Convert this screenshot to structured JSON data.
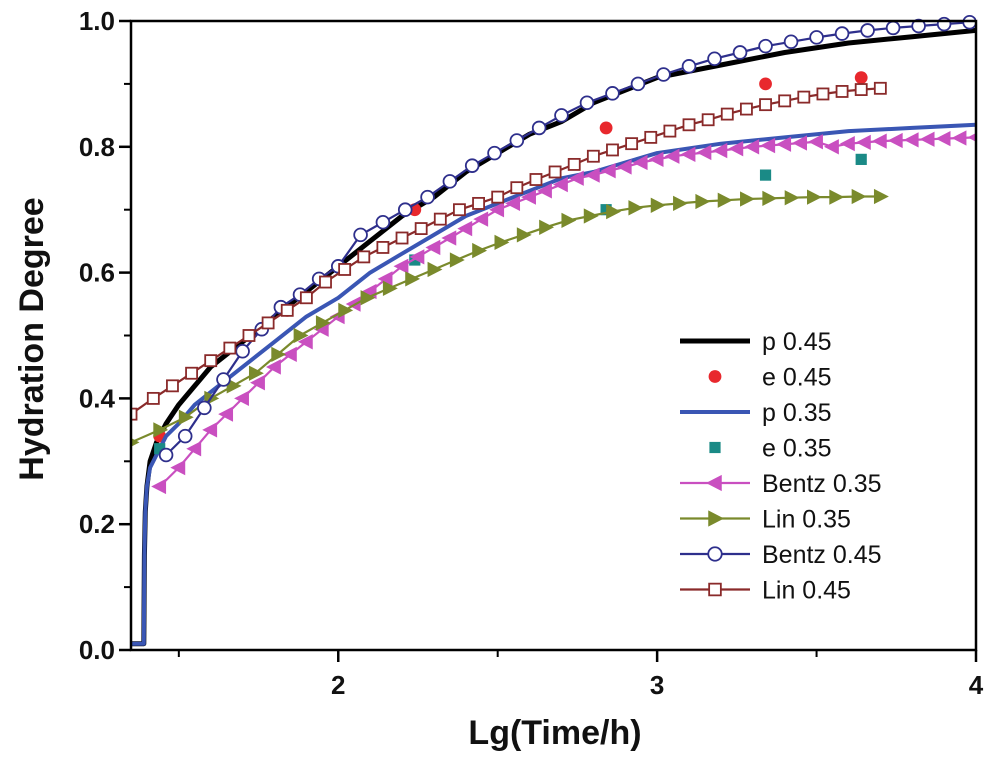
{
  "chart_data": {
    "type": "line",
    "xlabel": "Lg(Time/h)",
    "ylabel": "Hydration Degree",
    "xlim": [
      1.35,
      4.0
    ],
    "ylim": [
      0.0,
      1.0
    ],
    "x_ticks": [
      2,
      3,
      4
    ],
    "x_tick_labels": [
      "2",
      "3",
      "4"
    ],
    "x_minor_ticks": [
      1.5,
      2.5,
      3.5
    ],
    "y_ticks": [
      0.0,
      0.2,
      0.4,
      0.6,
      0.8,
      1.0
    ],
    "y_tick_labels": [
      "0.0",
      "0.2",
      "0.4",
      "0.6",
      "0.8",
      "1.0"
    ],
    "legend_position": "bottom-right",
    "series": [
      {
        "name": "p 0.45",
        "style": "line",
        "color": "#000000",
        "line_width": 5,
        "x": [
          1.35,
          1.39,
          1.392,
          1.395,
          1.4,
          1.41,
          1.43,
          1.46,
          1.5,
          1.55,
          1.6,
          1.7,
          1.8,
          1.9,
          2.0,
          2.1,
          2.2,
          2.3,
          2.4,
          2.5,
          2.6,
          2.7,
          2.8,
          2.9,
          3.0,
          3.2,
          3.4,
          3.6,
          3.8,
          4.0
        ],
        "y": [
          0.01,
          0.01,
          0.15,
          0.22,
          0.26,
          0.3,
          0.33,
          0.36,
          0.39,
          0.42,
          0.45,
          0.49,
          0.53,
          0.57,
          0.61,
          0.65,
          0.69,
          0.72,
          0.76,
          0.79,
          0.82,
          0.84,
          0.87,
          0.89,
          0.91,
          0.93,
          0.95,
          0.965,
          0.975,
          0.985
        ]
      },
      {
        "name": "e 0.45",
        "style": "marker",
        "marker": "filled-circle",
        "color": "#e8282d",
        "x": [
          1.44,
          1.84,
          2.24,
          2.84,
          3.34,
          3.64
        ],
        "y": [
          0.34,
          0.54,
          0.7,
          0.83,
          0.9,
          0.91
        ]
      },
      {
        "name": "p 0.35",
        "style": "line",
        "color": "#3a56b4",
        "line_width": 4,
        "x": [
          1.35,
          1.39,
          1.392,
          1.395,
          1.4,
          1.41,
          1.43,
          1.46,
          1.5,
          1.55,
          1.6,
          1.7,
          1.8,
          1.9,
          2.0,
          2.1,
          2.2,
          2.3,
          2.4,
          2.5,
          2.6,
          2.7,
          2.8,
          2.9,
          3.0,
          3.2,
          3.4,
          3.6,
          3.8,
          4.0
        ],
        "y": [
          0.01,
          0.01,
          0.15,
          0.22,
          0.26,
          0.29,
          0.31,
          0.34,
          0.36,
          0.39,
          0.41,
          0.45,
          0.49,
          0.53,
          0.56,
          0.6,
          0.63,
          0.66,
          0.69,
          0.71,
          0.73,
          0.75,
          0.76,
          0.775,
          0.79,
          0.805,
          0.815,
          0.825,
          0.83,
          0.835
        ]
      },
      {
        "name": "e 0.35",
        "style": "marker",
        "marker": "filled-square",
        "color": "#1a8a86",
        "x": [
          1.44,
          2.24,
          2.84,
          3.34,
          3.64
        ],
        "y": [
          0.32,
          0.62,
          0.7,
          0.755,
          0.78
        ]
      },
      {
        "name": "Bentz 0.35",
        "style": "line-marker",
        "marker": "triangle-left",
        "color": "#c94fc0",
        "x": [
          1.44,
          1.5,
          1.55,
          1.6,
          1.65,
          1.7,
          1.75,
          1.8,
          1.85,
          1.9,
          1.95,
          2.0,
          2.05,
          2.1,
          2.15,
          2.2,
          2.25,
          2.3,
          2.35,
          2.4,
          2.45,
          2.5,
          2.55,
          2.6,
          2.65,
          2.7,
          2.75,
          2.8,
          2.85,
          2.9,
          2.95,
          3.0,
          3.05,
          3.1,
          3.15,
          3.2,
          3.25,
          3.3,
          3.35,
          3.4,
          3.45,
          3.5,
          3.55,
          3.6,
          3.65,
          3.7,
          3.75,
          3.8,
          3.85,
          3.9,
          3.95,
          4.0
        ],
        "y": [
          0.26,
          0.29,
          0.32,
          0.35,
          0.375,
          0.4,
          0.425,
          0.45,
          0.47,
          0.49,
          0.51,
          0.53,
          0.55,
          0.57,
          0.59,
          0.61,
          0.625,
          0.64,
          0.655,
          0.67,
          0.685,
          0.7,
          0.71,
          0.72,
          0.73,
          0.74,
          0.75,
          0.755,
          0.762,
          0.768,
          0.775,
          0.78,
          0.785,
          0.788,
          0.791,
          0.794,
          0.797,
          0.8,
          0.802,
          0.804,
          0.806,
          0.808,
          0.8,
          0.805,
          0.807,
          0.809,
          0.81,
          0.811,
          0.812,
          0.813,
          0.814,
          0.815
        ]
      },
      {
        "name": "Lin 0.35",
        "style": "line-marker",
        "marker": "triangle-right",
        "color": "#7a8a2c",
        "x": [
          1.35,
          1.44,
          1.52,
          1.6,
          1.67,
          1.74,
          1.81,
          1.88,
          1.95,
          2.02,
          2.09,
          2.16,
          2.23,
          2.3,
          2.37,
          2.44,
          2.51,
          2.58,
          2.65,
          2.72,
          2.79,
          2.86,
          2.93,
          3.0,
          3.07,
          3.14,
          3.21,
          3.28,
          3.35,
          3.42,
          3.49,
          3.56,
          3.63,
          3.7
        ],
        "y": [
          0.33,
          0.35,
          0.37,
          0.4,
          0.42,
          0.44,
          0.47,
          0.5,
          0.52,
          0.54,
          0.56,
          0.575,
          0.59,
          0.605,
          0.62,
          0.635,
          0.648,
          0.66,
          0.672,
          0.683,
          0.69,
          0.697,
          0.703,
          0.707,
          0.71,
          0.713,
          0.715,
          0.717,
          0.718,
          0.719,
          0.72,
          0.72,
          0.721,
          0.721
        ]
      },
      {
        "name": "Bentz 0.45",
        "style": "line-marker",
        "marker": "open-circle",
        "color": "#2e2f8c",
        "x": [
          1.46,
          1.52,
          1.58,
          1.64,
          1.7,
          1.76,
          1.82,
          1.88,
          1.94,
          2.0,
          2.07,
          2.14,
          2.21,
          2.28,
          2.35,
          2.42,
          2.49,
          2.56,
          2.63,
          2.7,
          2.78,
          2.86,
          2.94,
          3.02,
          3.1,
          3.18,
          3.26,
          3.34,
          3.42,
          3.5,
          3.58,
          3.66,
          3.74,
          3.82,
          3.9,
          3.98
        ],
        "y": [
          0.31,
          0.34,
          0.385,
          0.43,
          0.475,
          0.51,
          0.545,
          0.565,
          0.59,
          0.61,
          0.66,
          0.68,
          0.7,
          0.72,
          0.745,
          0.77,
          0.79,
          0.81,
          0.83,
          0.85,
          0.87,
          0.885,
          0.9,
          0.915,
          0.928,
          0.94,
          0.95,
          0.96,
          0.967,
          0.974,
          0.98,
          0.985,
          0.989,
          0.992,
          0.995,
          0.998
        ]
      },
      {
        "name": "Lin 0.45",
        "style": "line-marker",
        "marker": "open-square",
        "color": "#8a2a2a",
        "x": [
          1.35,
          1.42,
          1.48,
          1.54,
          1.6,
          1.66,
          1.72,
          1.78,
          1.84,
          1.9,
          1.96,
          2.02,
          2.08,
          2.14,
          2.2,
          2.26,
          2.32,
          2.38,
          2.44,
          2.5,
          2.56,
          2.62,
          2.68,
          2.74,
          2.8,
          2.86,
          2.92,
          2.98,
          3.04,
          3.1,
          3.16,
          3.22,
          3.28,
          3.34,
          3.4,
          3.46,
          3.52,
          3.58,
          3.64,
          3.7
        ],
        "y": [
          0.375,
          0.4,
          0.42,
          0.44,
          0.46,
          0.48,
          0.5,
          0.52,
          0.54,
          0.56,
          0.585,
          0.605,
          0.625,
          0.64,
          0.655,
          0.67,
          0.685,
          0.7,
          0.71,
          0.72,
          0.735,
          0.748,
          0.76,
          0.772,
          0.785,
          0.795,
          0.805,
          0.815,
          0.825,
          0.835,
          0.843,
          0.852,
          0.86,
          0.867,
          0.873,
          0.879,
          0.884,
          0.888,
          0.891,
          0.893
        ]
      }
    ]
  }
}
